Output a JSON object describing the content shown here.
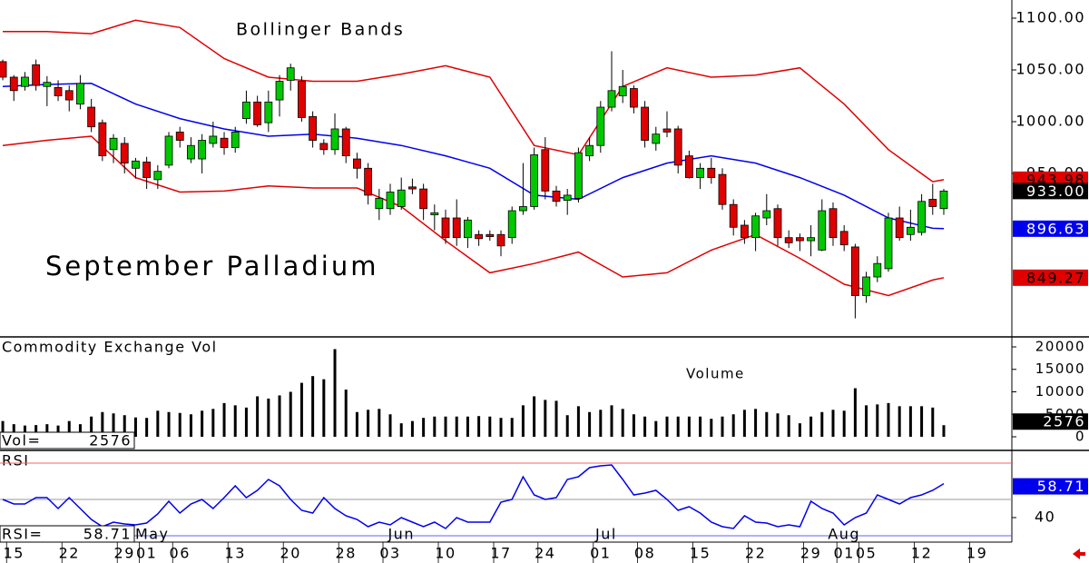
{
  "chart_data": [
    {
      "type": "candlestick",
      "title": "Bollinger Bands",
      "subtitle": "September Palladium",
      "xlim": [
        -0.25,
        91.15
      ],
      "xticks": [
        {
          "value": 1,
          "label": "15"
        },
        {
          "value": 6,
          "label": "22"
        },
        {
          "value": 11,
          "label": "29"
        },
        {
          "value": 13,
          "label": "01"
        },
        {
          "value": 16,
          "label": "06"
        },
        {
          "value": 21,
          "label": "13"
        },
        {
          "value": 26,
          "label": "20"
        },
        {
          "value": 31,
          "label": "28"
        },
        {
          "value": 35,
          "label": "03"
        },
        {
          "value": 40,
          "label": "10"
        },
        {
          "value": 45,
          "label": "17"
        },
        {
          "value": 49,
          "label": "24"
        },
        {
          "value": 54,
          "label": "01"
        },
        {
          "value": 58,
          "label": "08"
        },
        {
          "value": 63,
          "label": "15"
        },
        {
          "value": 68,
          "label": "22"
        },
        {
          "value": 73,
          "label": "29"
        },
        {
          "value": 76,
          "label": "01"
        },
        {
          "value": 78,
          "label": "05"
        },
        {
          "value": 83,
          "label": "12"
        },
        {
          "value": 88,
          "label": "19"
        }
      ],
      "months": [
        {
          "value": 13.5,
          "label": "May"
        },
        {
          "value": 36,
          "label": "Jun"
        },
        {
          "value": 54.5,
          "label": "Jul"
        },
        {
          "value": 76,
          "label": "Aug"
        }
      ],
      "ylim": [
        792.98,
        1117.54
      ],
      "yticks": [
        {
          "value": 1100,
          "label": "1100.00"
        },
        {
          "value": 1050,
          "label": "1050.00"
        },
        {
          "value": 1000,
          "label": "1000.00"
        },
        {
          "value": 950,
          "label": "950.00"
        }
      ],
      "candles": {
        "up_color": "#00c800",
        "down_color": "#e00000",
        "close_label": "933.00",
        "open": [
          1058,
          1043,
          1034,
          1055,
          1034,
          1033,
          1030,
          1017,
          1014,
          999,
          973,
          979,
          955,
          961,
          944,
          958,
          990,
          964,
          964,
          979,
          984,
          975,
          1003,
          1019,
          999,
          1021,
          1040,
          1039,
          1005,
          979,
          973,
          993,
          964,
          955,
          916,
          916,
          918,
          937,
          935,
          910,
          907,
          907,
          888,
          891,
          891,
          891,
          888,
          914,
          918,
          973,
          933,
          924,
          926,
          967,
          977,
          1014,
          1025,
          1032,
          1014,
          979,
          993,
          993,
          967,
          946,
          955,
          949,
          920,
          900,
          888,
          907,
          916,
          888,
          888,
          885,
          876,
          916,
          894,
          879,
          832,
          850,
          858,
          907,
          891,
          893,
          925,
          916
        ],
        "high": [
          1060,
          1045,
          1048,
          1060,
          1044,
          1040,
          1035,
          1045,
          1022,
          1002,
          988,
          985,
          965,
          966,
          958,
          990,
          995,
          985,
          988,
          1000,
          990,
          995,
          1030,
          1025,
          1030,
          1045,
          1056,
          1044,
          1010,
          983,
          1008,
          995,
          970,
          960,
          935,
          940,
          946,
          945,
          940,
          920,
          915,
          925,
          908,
          895,
          895,
          895,
          918,
          960,
          975,
          985,
          938,
          935,
          975,
          985,
          1020,
          1068,
          1050,
          1035,
          1020,
          995,
          1010,
          996,
          972,
          960,
          965,
          955,
          925,
          905,
          912,
          930,
          920,
          895,
          892,
          900,
          925,
          922,
          900,
          882,
          855,
          870,
          912,
          918,
          915,
          930,
          940,
          935
        ],
        "low": [
          1040,
          1020,
          1030,
          1030,
          1015,
          1020,
          1010,
          1012,
          990,
          962,
          960,
          950,
          945,
          935,
          935,
          955,
          975,
          960,
          950,
          975,
          968,
          970,
          998,
          995,
          990,
          1005,
          1030,
          1000,
          975,
          968,
          968,
          960,
          945,
          920,
          905,
          910,
          915,
          930,
          905,
          895,
          882,
          880,
          878,
          880,
          885,
          870,
          882,
          910,
          915,
          925,
          918,
          910,
          922,
          962,
          970,
          1010,
          1018,
          1008,
          975,
          972,
          985,
          950,
          945,
          935,
          940,
          915,
          890,
          882,
          875,
          900,
          880,
          878,
          875,
          870,
          875,
          880,
          875,
          810,
          825,
          845,
          855,
          885,
          885,
          890,
          910,
          910
        ],
        "close": [
          1043,
          1030,
          1043,
          1035,
          1038,
          1025,
          1021,
          1037,
          995,
          967,
          984,
          960,
          962,
          946,
          952,
          986,
          982,
          977,
          982,
          986,
          975,
          990,
          1019,
          997,
          1019,
          1039,
          1052,
          1004,
          982,
          973,
          993,
          967,
          955,
          929,
          926,
          932,
          934,
          935,
          916,
          912,
          888,
          888,
          905,
          887,
          889,
          880,
          914,
          918,
          968,
          933,
          923,
          929,
          970,
          977,
          1014,
          1030,
          1034,
          1014,
          982,
          988,
          990,
          958,
          946,
          955,
          946,
          920,
          898,
          888,
          909,
          914,
          888,
          883,
          885,
          888,
          914,
          888,
          881,
          832,
          850,
          863,
          907,
          888,
          898,
          923,
          918,
          933
        ]
      },
      "bands": [
        {
          "color": "#e00000",
          "x": [
            0,
            4,
            8,
            12,
            16,
            20,
            24,
            28,
            32,
            36,
            40,
            44,
            48,
            52,
            56,
            60,
            64,
            68,
            72,
            76,
            80,
            84,
            85
          ],
          "values": [
            1087,
            1087,
            1085,
            1098,
            1091,
            1061,
            1043,
            1039,
            1039,
            1046,
            1054,
            1043,
            977,
            968,
            1034,
            1052,
            1043,
            1045,
            1052,
            1017,
            973,
            942,
            943.98
          ]
        },
        {
          "color": "#0000ee",
          "x": [
            0,
            4,
            8,
            12,
            16,
            20,
            24,
            28,
            32,
            36,
            40,
            44,
            48,
            52,
            56,
            60,
            64,
            68,
            72,
            76,
            80,
            84,
            85
          ],
          "values": [
            1034,
            1036,
            1037,
            1017,
            1003,
            993,
            986,
            988,
            984,
            977,
            967,
            955,
            929,
            925,
            946,
            960,
            967,
            960,
            946,
            929,
            907,
            897,
            896.63
          ]
        },
        {
          "color": "#e00000",
          "x": [
            0,
            4,
            8,
            12,
            16,
            20,
            24,
            28,
            32,
            36,
            40,
            44,
            48,
            52,
            56,
            60,
            64,
            68,
            72,
            76,
            80,
            84,
            85
          ],
          "values": [
            977,
            982,
            986,
            946,
            932,
            933,
            938,
            936,
            936,
            918,
            885,
            854,
            863,
            874,
            850,
            854,
            876,
            891,
            868,
            843,
            832,
            847,
            849.27
          ]
        }
      ]
    },
    {
      "type": "bar",
      "title": "Commodity Exchange Vol",
      "annotation": "Volume",
      "label": "Vol=",
      "color": "#000000",
      "ylim": [
        -2828,
        22020
      ],
      "yticks": [
        0,
        5000,
        10000,
        15000,
        20000
      ],
      "values": [
        3500,
        2800,
        2500,
        2600,
        2800,
        2500,
        3500,
        2800,
        4500,
        5500,
        5200,
        4800,
        4300,
        4200,
        5800,
        5500,
        5300,
        5000,
        5800,
        6200,
        7500,
        7000,
        6500,
        9000,
        8500,
        9200,
        10000,
        12000,
        13500,
        12800,
        19500,
        10500,
        5500,
        6000,
        6200,
        5000,
        3000,
        3500,
        4200,
        4500,
        4500,
        4500,
        4500,
        4600,
        4500,
        4200,
        4200,
        7000,
        9000,
        8200,
        8000,
        4800,
        6800,
        5500,
        6000,
        7000,
        6200,
        5000,
        4500,
        3500,
        4500,
        4500,
        4500,
        4500,
        4000,
        4500,
        5000,
        6000,
        6200,
        5500,
        5200,
        4800,
        3000,
        4500,
        5500,
        6000,
        5800,
        10800,
        7000,
        7200,
        7500,
        6800,
        6800,
        6800,
        6500,
        2576
      ]
    },
    {
      "type": "line",
      "title": "RSI",
      "label": "RSI=",
      "color": "#0000ee",
      "ylim": [
        26.5,
        76.5
      ],
      "yticks": [
        40
      ],
      "reference_lines": [
        {
          "value": 70,
          "color": "#ff6060"
        },
        {
          "value": 50,
          "color": "#999999"
        },
        {
          "value": 30,
          "color": "#6060ff"
        }
      ],
      "values": [
        50,
        47.5,
        47.5,
        51,
        51,
        45,
        51,
        45,
        39,
        35,
        37.5,
        36.5,
        36,
        37,
        42,
        49,
        42.5,
        47.5,
        50,
        45,
        51,
        57.5,
        51,
        55,
        61,
        57.5,
        50,
        44,
        42.5,
        51,
        45,
        41,
        39,
        35,
        37.5,
        36,
        40,
        37.5,
        35,
        37.5,
        34,
        40,
        37.5,
        37.5,
        37.5,
        48.5,
        50,
        62.5,
        52.5,
        50,
        51,
        61,
        62.5,
        67.5,
        68.5,
        69,
        61,
        52.5,
        53.5,
        55,
        50,
        44,
        46,
        42.5,
        37.5,
        35,
        34,
        41,
        37.5,
        37,
        35,
        36,
        35,
        49,
        45,
        42.5,
        36,
        40,
        42.5,
        52.5,
        50,
        47.5,
        51,
        52.5,
        55,
        58.71
      ]
    }
  ]
}
